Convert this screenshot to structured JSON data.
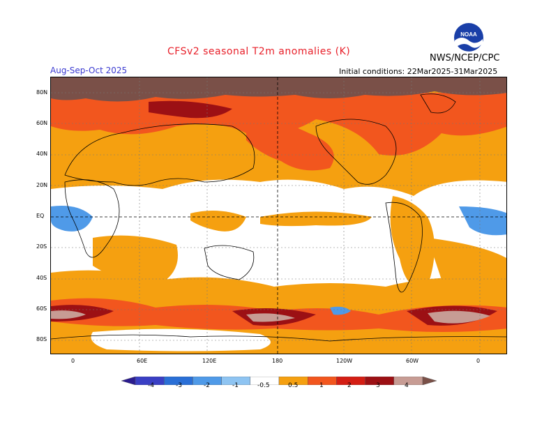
{
  "header": {
    "title": "CFSv2 seasonal T2m anomalies (K)",
    "season": "Aug-Sep-Oct 2025",
    "initial_conditions": "Initial conditions: 22Mar2025-31Mar2025",
    "organization": "NWS/NCEP/CPC",
    "logo_text": "NOAA"
  },
  "axes": {
    "lat_labels": [
      "80N",
      "60N",
      "40N",
      "20N",
      "EQ",
      "20S",
      "40S",
      "60S",
      "80S"
    ],
    "lon_labels": [
      "0",
      "60E",
      "120E",
      "180",
      "120W",
      "60W",
      "0"
    ]
  },
  "colorbar": {
    "labels": [
      "-4",
      "-3",
      "-2",
      "-1",
      "-0.5",
      "0.5",
      "1",
      "2",
      "3",
      "4"
    ],
    "colors": [
      "#2b1c8f",
      "#3a3fc4",
      "#2a6fd6",
      "#4f9ae8",
      "#8ec4f2",
      "#ffffff",
      "#f5a010",
      "#f2561e",
      "#d41e14",
      "#9c1014",
      "#c79c94",
      "#7a5048"
    ]
  }
}
